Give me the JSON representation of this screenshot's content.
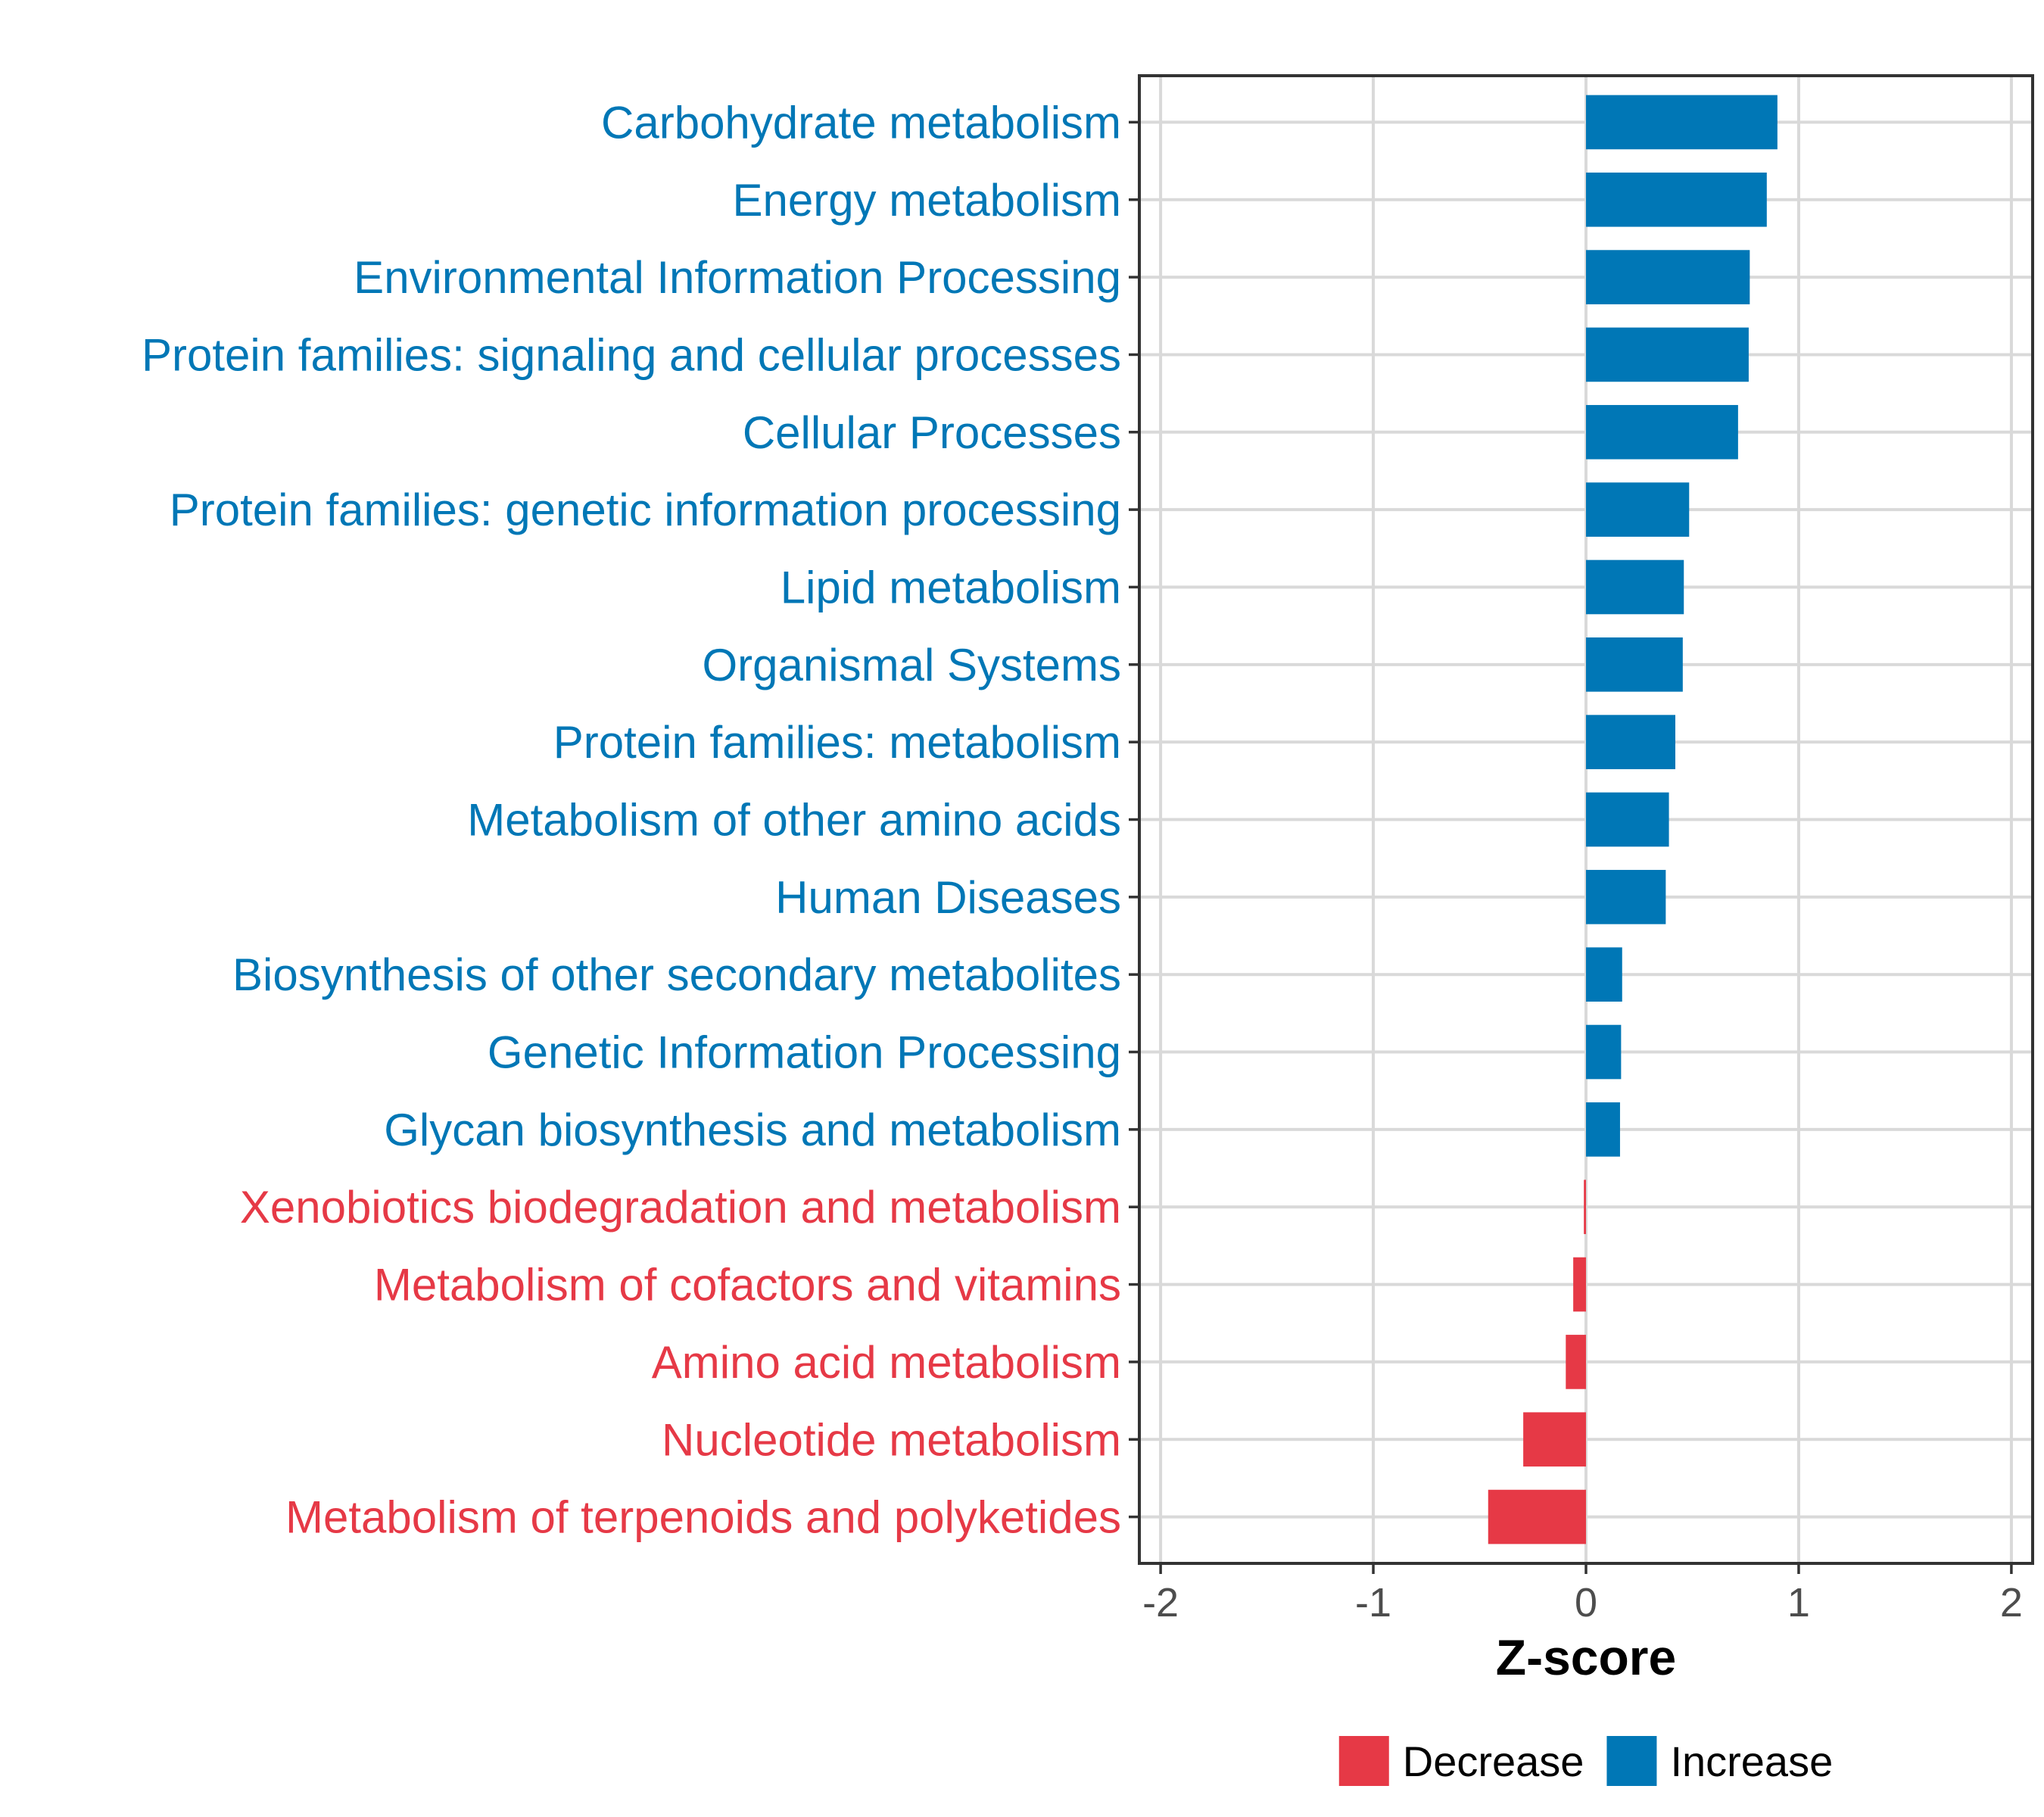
{
  "chart_data": {
    "type": "bar",
    "orientation": "horizontal",
    "xlabel": "Z-score",
    "xlim": [
      -2.1,
      2.1
    ],
    "xticks": [
      -2,
      -1,
      0,
      1,
      2
    ],
    "xtick_labels": [
      "-2",
      "-1",
      "0",
      "1",
      "2"
    ],
    "categories": [
      "Carbohydrate metabolism",
      "Energy metabolism",
      "Environmental Information Processing",
      "Protein families: signaling and cellular processes",
      "Cellular Processes",
      "Protein families: genetic information processing",
      "Lipid metabolism",
      "Organismal Systems",
      "Protein families: metabolism",
      "Metabolism of other amino acids",
      "Human Diseases",
      "Biosynthesis of other secondary metabolites",
      "Genetic Information Processing",
      "Glycan biosynthesis and metabolism",
      "Xenobiotics biodegradation and metabolism",
      "Metabolism of cofactors and vitamins",
      "Amino acid metabolism",
      "Nucleotide metabolism",
      "Metabolism of terpenoids and polyketides"
    ],
    "values": [
      0.9,
      0.85,
      0.77,
      0.765,
      0.715,
      0.485,
      0.46,
      0.455,
      0.42,
      0.39,
      0.375,
      0.17,
      0.165,
      0.16,
      -0.01,
      -0.06,
      -0.095,
      -0.295,
      -0.46
    ],
    "groups": [
      "Increase",
      "Increase",
      "Increase",
      "Increase",
      "Increase",
      "Increase",
      "Increase",
      "Increase",
      "Increase",
      "Increase",
      "Increase",
      "Increase",
      "Increase",
      "Increase",
      "Decrease",
      "Decrease",
      "Decrease",
      "Decrease",
      "Decrease"
    ],
    "legend": {
      "position": "bottom",
      "entries": [
        {
          "label": "Decrease",
          "color": "#E63946"
        },
        {
          "label": "Increase",
          "color": "#0077B6"
        }
      ]
    },
    "colors": {
      "Increase": "#0077B6",
      "Decrease": "#E63946"
    },
    "grid": true
  }
}
